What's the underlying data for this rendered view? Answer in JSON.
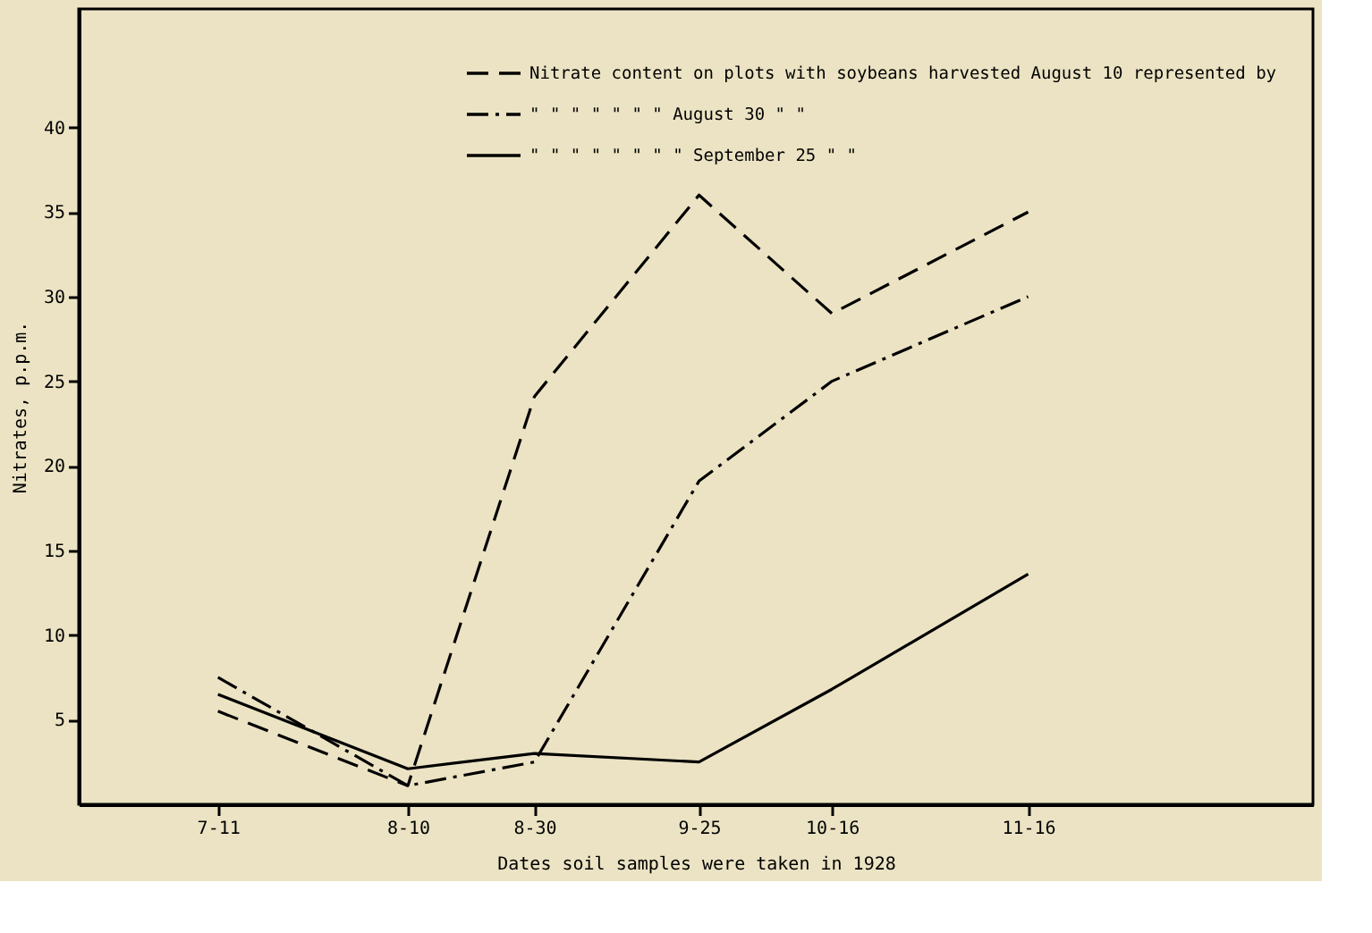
{
  "chart_data": {
    "type": "line",
    "xlabel": "Dates soil samples were taken in 1928",
    "ylabel": "Nitrates, p.p.m.",
    "x": [
      "1928-07-11",
      "1928-08-10",
      "1928-08-30",
      "1928-09-25",
      "1928-10-16",
      "1928-11-16"
    ],
    "xlim": [
      "1928-06-19",
      "1928-12-31"
    ],
    "xticks": [
      {
        "value": "1928-07-11",
        "label": "7-11"
      },
      {
        "value": "1928-08-10",
        "label": "8-10"
      },
      {
        "value": "1928-08-30",
        "label": "8-30"
      },
      {
        "value": "1928-09-25",
        "label": "9-25"
      },
      {
        "value": "1928-10-16",
        "label": "10-16"
      },
      {
        "value": "1928-11-16",
        "label": "11-16"
      }
    ],
    "ylim": [
      0,
      47
    ],
    "yticks": [
      5,
      10,
      15,
      20,
      25,
      30,
      35,
      40
    ],
    "series": [
      {
        "name": "Nitrate content on plots with soybeans harvested August 10 represented by",
        "color": "#000000",
        "line_style": "dashed",
        "values": [
          5.5,
          1.1,
          24.1,
          36,
          29,
          35
        ]
      },
      {
        "name": "\"      \"    \"   \"   \"     \"        \"   August 30      \"    \"",
        "color": "#000000",
        "line_style": "dashdot",
        "values": [
          7.5,
          1.1,
          2.5,
          19.1,
          25,
          30
        ]
      },
      {
        "name": "\"     \"     \"   \"   \"    \"    \"     \"  September 25   \"    \"",
        "color": "#000000",
        "line_style": "solid",
        "values": [
          6.5,
          2.1,
          3.0,
          2.5,
          6.8,
          13.6
        ]
      }
    ],
    "legend": "top right",
    "grid": false,
    "marker": "none"
  }
}
